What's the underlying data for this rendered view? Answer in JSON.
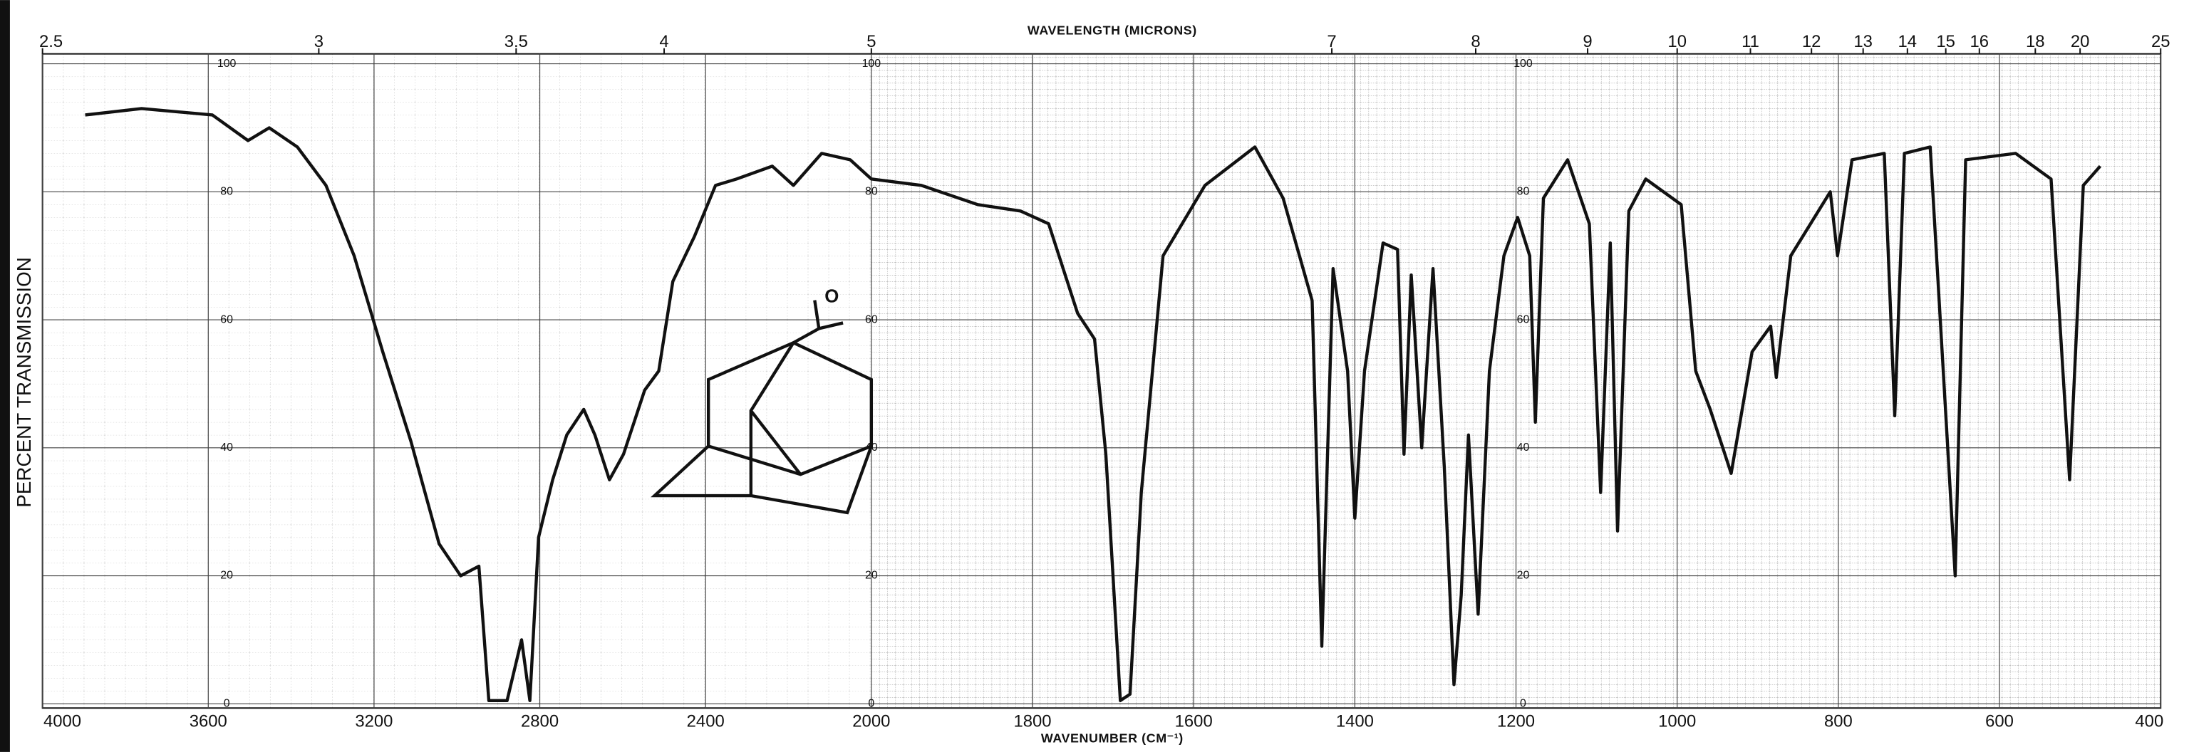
{
  "chart_data": {
    "type": "line",
    "x2label": "WAVELENGTH (MICRONS)",
    "xlabel": "WAVENUMBER (CM⁻¹)",
    "ylabel": "PERCENT TRANSMISSION",
    "xlim": [
      4000,
      400
    ],
    "xscale": {
      "type": "piecewise-linear",
      "break": 2000
    },
    "xticks": [
      4000,
      3600,
      3200,
      2800,
      2400,
      2000,
      1800,
      1600,
      1400,
      1200,
      1000,
      800,
      600,
      400
    ],
    "x2ticks": [
      2.5,
      3,
      3.5,
      4,
      5,
      7,
      8,
      9,
      10,
      11,
      12,
      13,
      14,
      15,
      16,
      18,
      20,
      25
    ],
    "ylim": [
      0,
      100
    ],
    "yticks": [
      0,
      20,
      40,
      60,
      80,
      100
    ],
    "grid": true,
    "color": "#111111",
    "x": [
      3897,
      3761,
      3590,
      3504,
      3453,
      3385,
      3316,
      3248,
      3179,
      3111,
      3043,
      2991,
      2947,
      2923,
      2879,
      2844,
      2824,
      2803,
      2769,
      2735,
      2694,
      2667,
      2632,
      2598,
      2547,
      2513,
      2479,
      2427,
      2376,
      2325,
      2239,
      2188,
      2120,
      2051,
      2000,
      1938,
      1868,
      1815,
      1780,
      1744,
      1723,
      1709,
      1691,
      1679,
      1665,
      1638,
      1586,
      1524,
      1489,
      1471,
      1453,
      1441,
      1427,
      1409,
      1400,
      1388,
      1365,
      1347,
      1339,
      1330,
      1317,
      1303,
      1289,
      1277,
      1268,
      1259,
      1247,
      1233,
      1215,
      1198,
      1183,
      1176,
      1166,
      1136,
      1109,
      1095,
      1083,
      1074,
      1060,
      1039,
      995,
      977,
      959,
      933,
      907,
      884,
      877,
      859,
      810,
      801,
      783,
      743,
      730,
      718,
      686,
      655,
      642,
      580,
      536,
      513,
      496,
      475
    ],
    "values": [
      92,
      93,
      92,
      88,
      90,
      87,
      81,
      70,
      55,
      41,
      25,
      20,
      21.5,
      0.5,
      0.5,
      10,
      0.5,
      26,
      35,
      42,
      46,
      42,
      35,
      39,
      49,
      52,
      66,
      73,
      81,
      82,
      84,
      81,
      86,
      85,
      82,
      81,
      78,
      77,
      75,
      61,
      57,
      39,
      0.5,
      1.5,
      33,
      70,
      81,
      87,
      79,
      71,
      63,
      9,
      68,
      52,
      29,
      52,
      72,
      71,
      39,
      67,
      40,
      68,
      37,
      3,
      17,
      42,
      14,
      52,
      70,
      76,
      70,
      44,
      79,
      85,
      75,
      33,
      72,
      27,
      77,
      82,
      78,
      52,
      46,
      36,
      55,
      59,
      51,
      70,
      80,
      70,
      85,
      86,
      45,
      86,
      87,
      20,
      85,
      86,
      82,
      35,
      81,
      84
    ]
  }
}
